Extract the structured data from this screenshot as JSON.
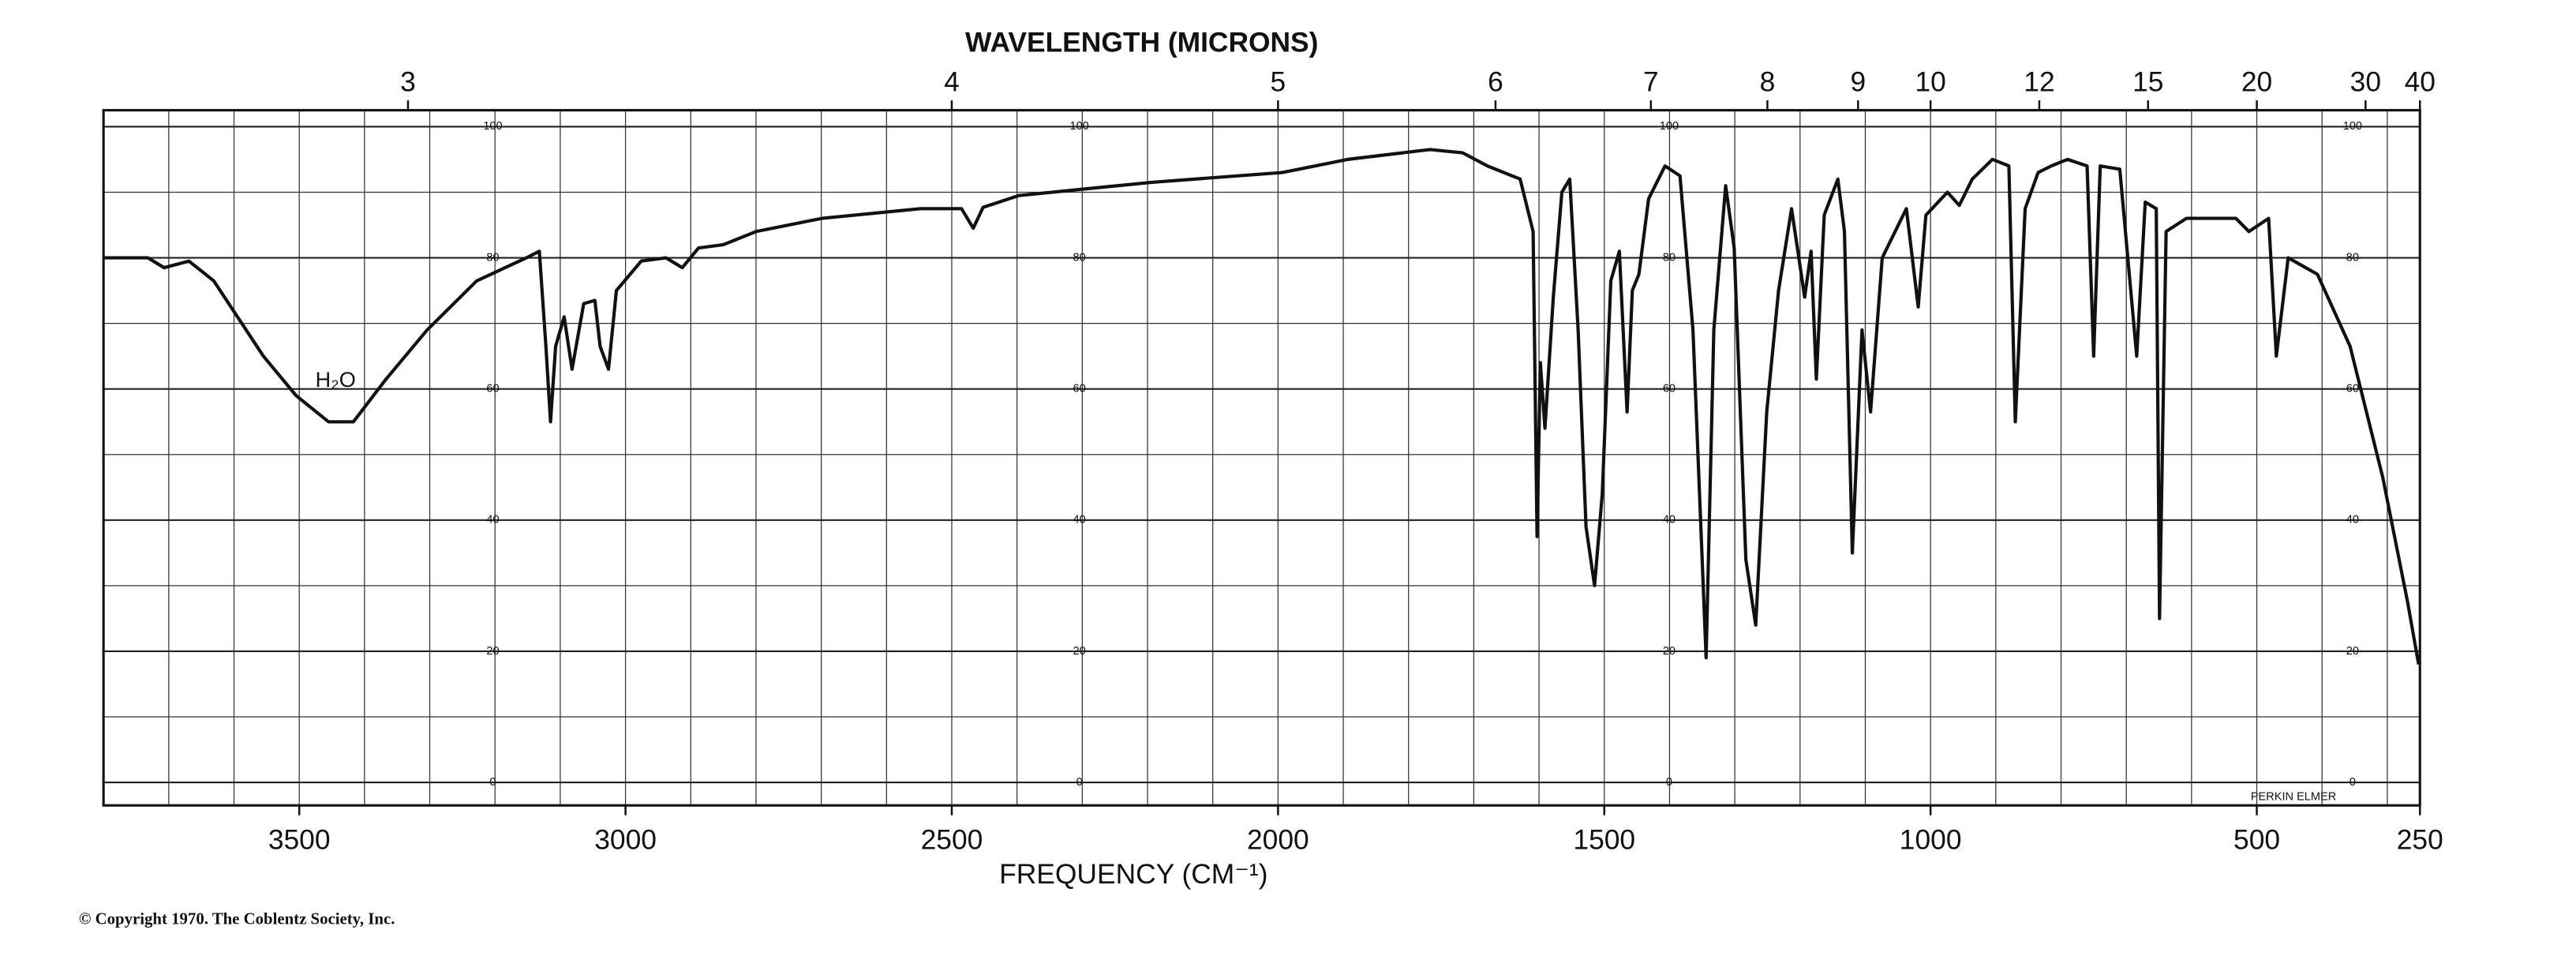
{
  "chart_data": {
    "type": "line",
    "title": "WAVELENGTH (MICRONS)",
    "x_label": "FREQUENCY (CM⁻¹)",
    "copyright": "© Copyright 1970. The Coblentz Society, Inc.",
    "instrument": "PERKIN ELMER",
    "annotation": "H₂O",
    "color": "#111111",
    "xlim": [
      3800,
      250
    ],
    "ylim": [
      -3.5,
      102.5
    ],
    "xticks": [
      3500,
      3000,
      2500,
      2000,
      1500,
      1000,
      500,
      250
    ],
    "xticks_minor": [
      3800,
      3700,
      3600,
      3500,
      3400,
      3300,
      3200,
      3100,
      3000,
      2900,
      2800,
      2700,
      2600,
      2500,
      2400,
      2300,
      2200,
      2100,
      2000,
      1900,
      1800,
      1700,
      1600,
      1500,
      1400,
      1300,
      1200,
      1100,
      1000,
      900,
      800,
      700,
      600,
      500,
      400,
      300
    ],
    "x2ticks": [
      3,
      4,
      5,
      6,
      7,
      8,
      9,
      10,
      12,
      15,
      20,
      30,
      40
    ],
    "yticks": [
      0,
      20,
      40,
      60,
      80,
      100
    ],
    "yticks_minor": [
      10,
      30,
      50,
      70,
      90
    ],
    "grid": true,
    "x": [
      3800,
      3732,
      3707,
      3669,
      3631,
      3555,
      3505,
      3455,
      3417,
      3367,
      3304,
      3228,
      3152,
      3132,
      3122,
      3115,
      3107,
      3094,
      3082,
      3064,
      3047,
      3039,
      3026,
      3014,
      2976,
      2938,
      2913,
      2888,
      2850,
      2800,
      2699,
      2548,
      2485,
      2467,
      2452,
      2397,
      2195,
      1994,
      1943,
      1893,
      1767,
      1717,
      1679,
      1629,
      1609,
      1603,
      1598,
      1591,
      1578,
      1565,
      1553,
      1540,
      1528,
      1515,
      1503,
      1490,
      1477,
      1465,
      1457,
      1447,
      1432,
      1407,
      1384,
      1364,
      1344,
      1332,
      1314,
      1301,
      1283,
      1268,
      1251,
      1233,
      1213,
      1193,
      1183,
      1175,
      1163,
      1142,
      1132,
      1120,
      1105,
      1092,
      1074,
      1037,
      1019,
      1007,
      974,
      956,
      936,
      905,
      880,
      870,
      855,
      835,
      815,
      790,
      760,
      750,
      740,
      710,
      684,
      671,
      654,
      649,
      639,
      608,
      532,
      512,
      482,
      470,
      452,
      407,
      357,
      307,
      269,
      252
    ],
    "values": [
      80,
      80,
      78.5,
      79.5,
      76.5,
      65,
      59,
      55,
      55,
      61.5,
      69,
      76.5,
      80,
      81,
      66.5,
      55,
      66.5,
      71,
      63,
      73,
      73.5,
      66.5,
      63,
      75,
      79.5,
      80,
      78.5,
      81.5,
      82,
      84,
      86,
      87.5,
      87.5,
      84.5,
      87.7,
      89.5,
      91.5,
      93,
      94,
      95,
      96.5,
      96,
      94,
      92,
      84,
      37.5,
      64,
      54,
      74,
      90,
      92,
      69,
      39,
      30,
      44,
      76.5,
      81,
      56.5,
      75,
      77.5,
      89,
      94,
      92.5,
      69,
      19,
      69,
      91,
      81.5,
      34,
      24,
      56.5,
      75,
      87.5,
      74,
      81,
      61.5,
      86.5,
      92,
      84,
      35,
      69,
      56.5,
      80,
      87.5,
      72.5,
      86.5,
      90,
      88,
      92,
      95,
      94,
      55,
      87.5,
      93,
      94,
      95,
      94,
      65,
      94,
      93.5,
      65,
      88.5,
      87.5,
      25,
      84,
      86,
      86,
      84,
      86,
      65,
      80,
      77.5,
      66.5,
      46.5,
      27.5,
      18
    ]
  }
}
